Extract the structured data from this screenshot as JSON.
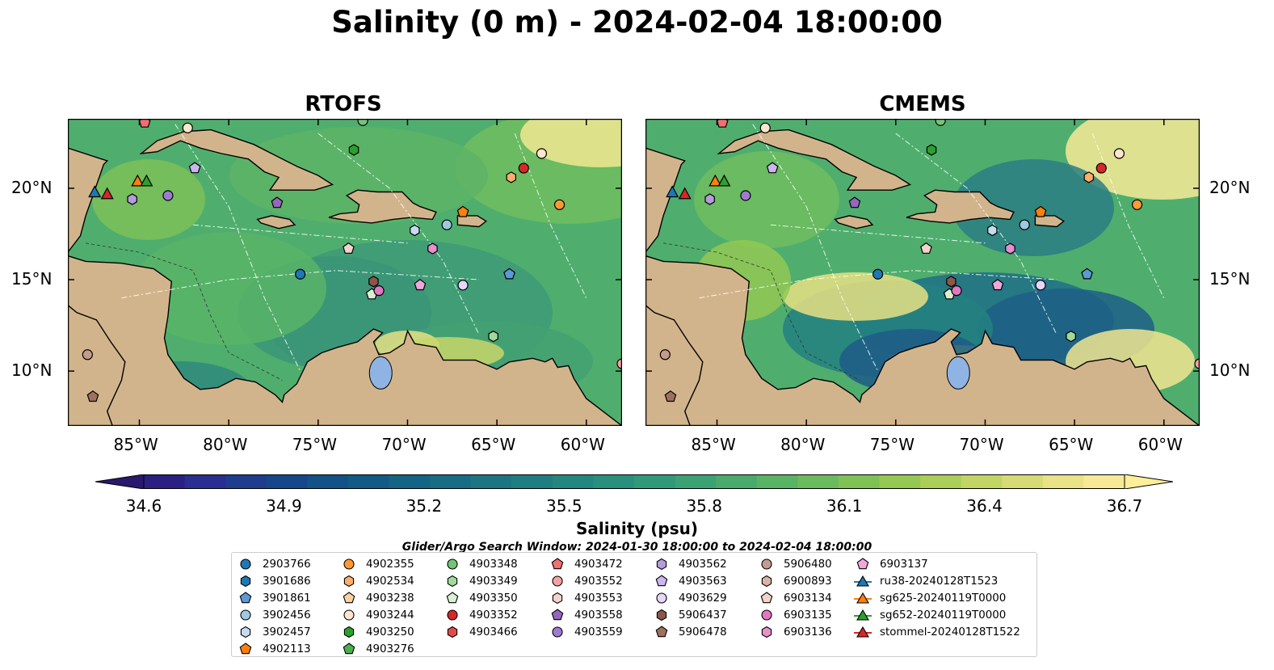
{
  "title": "Salinity (0 m) - 2024-02-04 18:00:00",
  "panels": [
    {
      "title": "RTOFS"
    },
    {
      "title": "CMEMS"
    }
  ],
  "axes": {
    "lon_ticks": [
      "85°W",
      "80°W",
      "75°W",
      "70°W",
      "65°W",
      "60°W"
    ],
    "lat_ticks": [
      "20°N",
      "15°N",
      "10°N"
    ],
    "lon_range": [
      -89,
      -58
    ],
    "lat_range": [
      7,
      23.8
    ]
  },
  "colorbar": {
    "ticks": [
      "34.6",
      "34.9",
      "35.2",
      "35.5",
      "35.8",
      "36.1",
      "36.4",
      "36.7"
    ],
    "label": "Salinity (psu)",
    "colormap": "haline",
    "colors": [
      "#2a186c",
      "#2c1f83",
      "#2a2e90",
      "#1f3d8e",
      "#17478b",
      "#125288",
      "#125b86",
      "#136485",
      "#176d84",
      "#1b7583",
      "#1f7e82",
      "#238780",
      "#28907d",
      "#2f9979",
      "#3aa273",
      "#48ab6b",
      "#58b363",
      "#6abb5c",
      "#7ec255",
      "#94c853",
      "#abce58",
      "#c2d464",
      "#d6db75",
      "#e9e387",
      "#f6ea96",
      "#fdee99"
    ],
    "extend": "both"
  },
  "search_window": "Glider/Argo Search Window: 2024-01-30 18:00:00 to 2024-02-04 18:00:00",
  "legend": {
    "columns": [
      [
        {
          "label": "2903766",
          "shape": "circle",
          "color": "#1f77b4"
        },
        {
          "label": "3901686",
          "shape": "hexagon",
          "color": "#1f77b4"
        },
        {
          "label": "3901861",
          "shape": "pentagon",
          "color": "#5b9bd5"
        },
        {
          "label": "3902456",
          "shape": "circle",
          "color": "#9ecae1"
        },
        {
          "label": "3902457",
          "shape": "hexagon",
          "color": "#c6dbef"
        },
        {
          "label": "4902113",
          "shape": "pentagon",
          "color": "#ff7f0e"
        }
      ],
      [
        {
          "label": "4902355",
          "shape": "circle",
          "color": "#ff9933"
        },
        {
          "label": "4902534",
          "shape": "hexagon",
          "color": "#fdae6b"
        },
        {
          "label": "4903238",
          "shape": "pentagon",
          "color": "#fdd0a2"
        },
        {
          "label": "4903244",
          "shape": "circle",
          "color": "#fee6ce"
        },
        {
          "label": "4903250",
          "shape": "hexagon",
          "color": "#2ca02c"
        },
        {
          "label": "4903276",
          "shape": "pentagon",
          "color": "#4caf50"
        }
      ],
      [
        {
          "label": "4903348",
          "shape": "circle",
          "color": "#74c476"
        },
        {
          "label": "4903349",
          "shape": "hexagon",
          "color": "#a1d99b"
        },
        {
          "label": "4903350",
          "shape": "pentagon",
          "color": "#d9f0d3"
        },
        {
          "label": "4903352",
          "shape": "circle",
          "color": "#d62728"
        },
        {
          "label": "4903466",
          "shape": "hexagon",
          "color": "#e34a4a"
        }
      ],
      [
        {
          "label": "4903472",
          "shape": "pentagon",
          "color": "#f07070"
        },
        {
          "label": "4903552",
          "shape": "circle",
          "color": "#f4a3a3"
        },
        {
          "label": "4903553",
          "shape": "hexagon",
          "color": "#fbd0d0"
        },
        {
          "label": "4903558",
          "shape": "pentagon",
          "color": "#9467bd"
        },
        {
          "label": "4903559",
          "shape": "circle",
          "color": "#9e7bd0"
        }
      ],
      [
        {
          "label": "4903562",
          "shape": "hexagon",
          "color": "#b39ddb"
        },
        {
          "label": "4903563",
          "shape": "pentagon",
          "color": "#cbb6ee"
        },
        {
          "label": "4903629",
          "shape": "circle",
          "color": "#e6d6fa"
        },
        {
          "label": "5906437",
          "shape": "hexagon",
          "color": "#8c564b"
        },
        {
          "label": "5906478",
          "shape": "pentagon",
          "color": "#a0705f"
        }
      ],
      [
        {
          "label": "5906480",
          "shape": "circle",
          "color": "#c49c8e"
        },
        {
          "label": "6900893",
          "shape": "hexagon",
          "color": "#dbb3a6"
        },
        {
          "label": "6903134",
          "shape": "pentagon",
          "color": "#f2d5c8"
        },
        {
          "label": "6903135",
          "shape": "circle",
          "color": "#e377c2"
        },
        {
          "label": "6903136",
          "shape": "hexagon",
          "color": "#e88fcc"
        }
      ],
      [
        {
          "label": "6903137",
          "shape": "pentagon",
          "color": "#f0a8dc"
        },
        {
          "label": "ru38-20240128T1523",
          "shape": "triangle",
          "color": "#1f77b4"
        },
        {
          "label": "sg625-20240119T0000",
          "shape": "triangle",
          "color": "#ff7f0e"
        },
        {
          "label": "sg652-20240119T0000",
          "shape": "triangle",
          "color": "#2ca02c"
        },
        {
          "label": "stommel-20240128T1522",
          "shape": "triangle",
          "color": "#d62728"
        }
      ]
    ]
  },
  "platforms": [
    {
      "lon": -76.0,
      "lat": 15.3,
      "shape": "circle",
      "color": "#1f77b4"
    },
    {
      "lon": -69.6,
      "lat": 17.7,
      "shape": "hexagon",
      "color": "#c6dbef"
    },
    {
      "lon": -67.8,
      "lat": 18.0,
      "shape": "circle",
      "color": "#9ecae1"
    },
    {
      "lon": -64.3,
      "lat": 15.3,
      "shape": "pentagon",
      "color": "#5b9bd5"
    },
    {
      "lon": -66.9,
      "lat": 18.7,
      "shape": "pentagon",
      "color": "#ff7f0e"
    },
    {
      "lon": -64.2,
      "lat": 20.6,
      "shape": "hexagon",
      "color": "#fdae6b"
    },
    {
      "lon": -61.5,
      "lat": 19.1,
      "shape": "circle",
      "color": "#ff9933"
    },
    {
      "lon": -62.5,
      "lat": 21.9,
      "shape": "circle",
      "color": "#fee6ce"
    },
    {
      "lon": -63.5,
      "lat": 21.1,
      "shape": "circle",
      "color": "#d62728"
    },
    {
      "lon": -73.0,
      "lat": 22.1,
      "shape": "hexagon",
      "color": "#2ca02c"
    },
    {
      "lon": -72.5,
      "lat": 23.7,
      "shape": "circle",
      "color": "#74c476"
    },
    {
      "lon": -65.2,
      "lat": 11.9,
      "shape": "hexagon",
      "color": "#a1d99b"
    },
    {
      "lon": -72.0,
      "lat": 14.2,
      "shape": "pentagon",
      "color": "#d9f0d3"
    },
    {
      "lon": -84.7,
      "lat": 23.6,
      "shape": "pentagon",
      "color": "#f07070"
    },
    {
      "lon": -82.3,
      "lat": 23.3,
      "shape": "circle",
      "color": "#fee6ce"
    },
    {
      "lon": -77.3,
      "lat": 19.2,
      "shape": "pentagon",
      "color": "#9467bd"
    },
    {
      "lon": -83.4,
      "lat": 19.6,
      "shape": "circle",
      "color": "#9e7bd0"
    },
    {
      "lon": -81.9,
      "lat": 21.1,
      "shape": "pentagon",
      "color": "#cbb6ee"
    },
    {
      "lon": -85.4,
      "lat": 19.4,
      "shape": "hexagon",
      "color": "#b39ddb"
    },
    {
      "lon": -66.9,
      "lat": 14.7,
      "shape": "circle",
      "color": "#e6d6fa"
    },
    {
      "lon": -71.9,
      "lat": 14.9,
      "shape": "hexagon",
      "color": "#8c564b"
    },
    {
      "lon": -87.6,
      "lat": 8.6,
      "shape": "pentagon",
      "color": "#a0705f"
    },
    {
      "lon": -87.9,
      "lat": 10.9,
      "shape": "circle",
      "color": "#c49c8e"
    },
    {
      "lon": -73.3,
      "lat": 16.7,
      "shape": "pentagon",
      "color": "#f2d5c8"
    },
    {
      "lon": -71.6,
      "lat": 14.4,
      "shape": "circle",
      "color": "#e377c2"
    },
    {
      "lon": -68.6,
      "lat": 16.7,
      "shape": "hexagon",
      "color": "#e88fcc"
    },
    {
      "lon": -69.3,
      "lat": 14.7,
      "shape": "pentagon",
      "color": "#f0a8dc"
    },
    {
      "lon": -58.0,
      "lat": 10.4,
      "shape": "circle",
      "color": "#f4a3a3"
    },
    {
      "lon": -87.5,
      "lat": 19.8,
      "shape": "triangle",
      "color": "#1f77b4"
    },
    {
      "lon": -85.1,
      "lat": 20.4,
      "shape": "triangle",
      "color": "#ff7f0e"
    },
    {
      "lon": -84.6,
      "lat": 20.4,
      "shape": "triangle",
      "color": "#2ca02c"
    },
    {
      "lon": -86.8,
      "lat": 19.7,
      "shape": "triangle",
      "color": "#d62728"
    }
  ]
}
